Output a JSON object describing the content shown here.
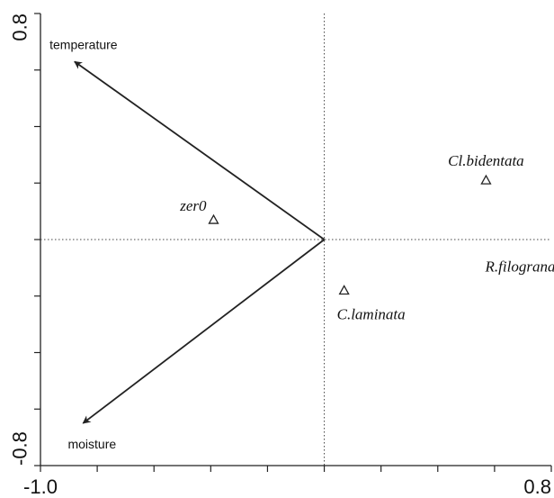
{
  "chart_data": {
    "type": "scatter",
    "title": "",
    "xlabel": "",
    "ylabel": "",
    "xlim": [
      -1.0,
      0.8
    ],
    "ylim": [
      -0.8,
      0.8
    ],
    "x_tick_labels": [
      {
        "value": -1.0,
        "label": "-1.0"
      },
      {
        "value": 0.8,
        "label": "0.8"
      }
    ],
    "y_tick_labels": [
      {
        "value": 0.8,
        "label": "0.8"
      },
      {
        "value": -0.8,
        "label": "-0.8"
      }
    ],
    "minor_tick_step": 0.2,
    "reference_lines": {
      "x": 0,
      "y": 0
    },
    "vectors": [
      {
        "label": "temperature",
        "x": -0.88,
        "y": 0.63
      },
      {
        "label": "moisture",
        "x": -0.85,
        "y": -0.65
      }
    ],
    "points": [
      {
        "label": "zer0",
        "x": -0.39,
        "y": 0.07
      },
      {
        "label": "Cl.bidentata",
        "x": 0.57,
        "y": 0.21
      },
      {
        "label": "R.filograna",
        "x": 0.83,
        "y": -0.04
      },
      {
        "label": "C.laminata",
        "x": 0.07,
        "y": -0.18
      }
    ]
  }
}
